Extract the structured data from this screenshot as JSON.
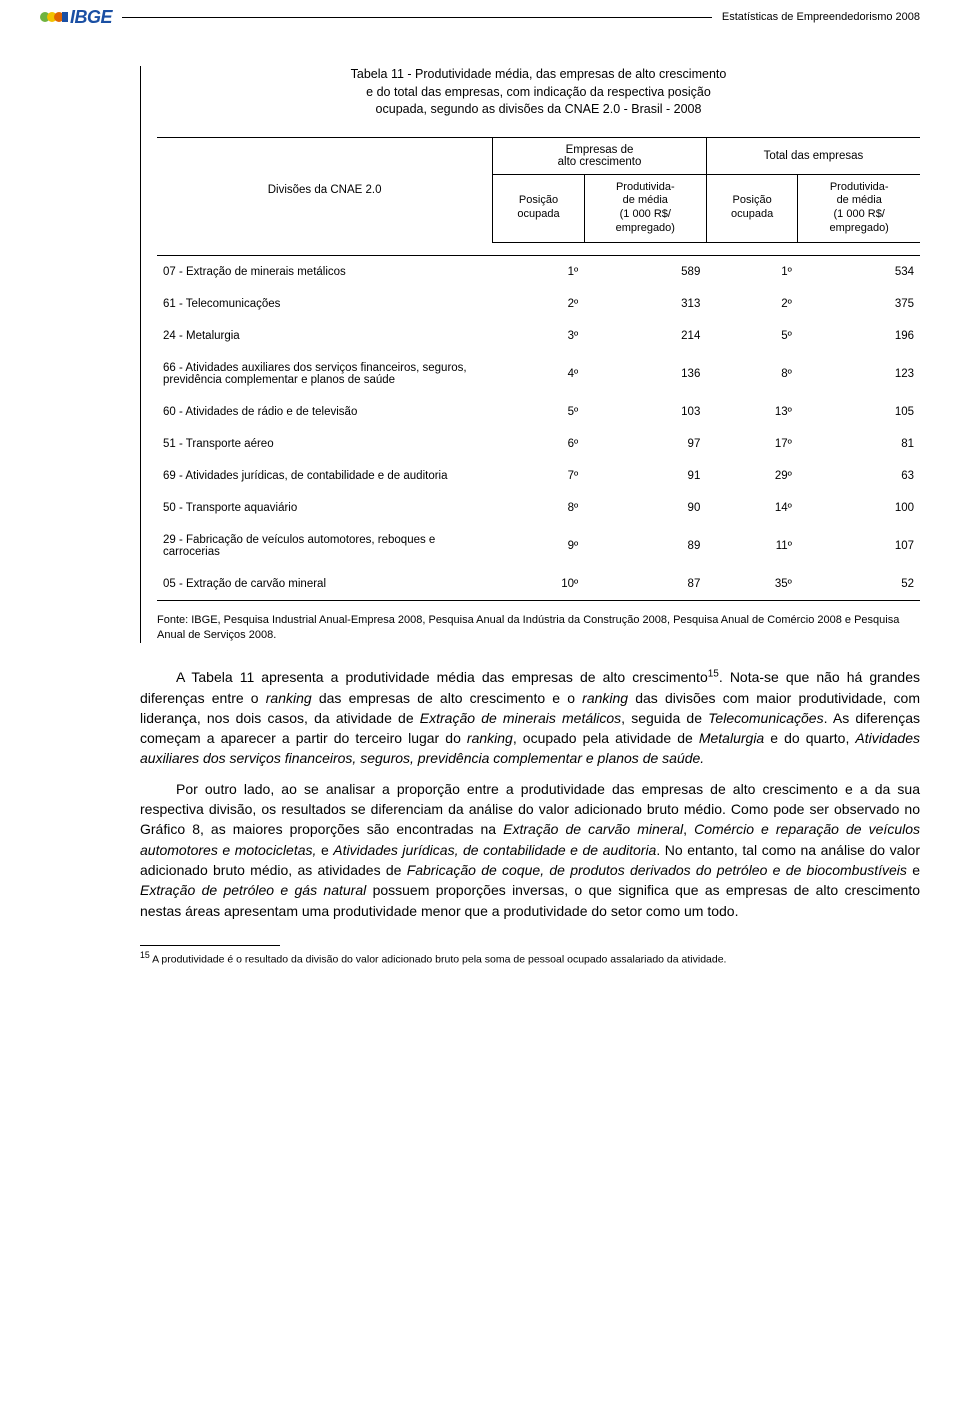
{
  "header": {
    "logo_text": "IBGE",
    "logo_colors": {
      "left": "#6fb33f",
      "mid1": "#f2c200",
      "mid2": "#e06400",
      "right": "#1a4fa3"
    },
    "right_text": "Estatísticas de Empreendedorismo 2008"
  },
  "table": {
    "caption_line1": "Tabela 11 - Produtividade média, das empresas de alto crescimento",
    "caption_line2": "e do total das empresas, com indicação da respectiva posição",
    "caption_line3": "ocupada, segundo as divisões da CNAE 2.0 - Brasil - 2008",
    "group_headers": {
      "left": "Empresas de\nalto crescimento",
      "right": "Total das empresas"
    },
    "row_header_label": "Divisões da CNAE 2.0",
    "col_headers": {
      "pos": "Posição\nocupada",
      "prod": "Produtivida-\nde média\n(1 000 R$/\nempregado)"
    },
    "rows": [
      {
        "label": "07 - Extração de minerais metálicos",
        "p1": "1º",
        "v1": "589",
        "p2": "1º",
        "v2": "534"
      },
      {
        "label": "61 - Telecomunicações",
        "p1": "2º",
        "v1": "313",
        "p2": "2º",
        "v2": "375"
      },
      {
        "label": "24 - Metalurgia",
        "p1": "3º",
        "v1": "214",
        "p2": "5º",
        "v2": "196"
      },
      {
        "label": "66 - Atividades auxiliares dos serviços financeiros, seguros, previdência complementar e planos de saúde",
        "p1": "4º",
        "v1": "136",
        "p2": "8º",
        "v2": "123"
      },
      {
        "label": "60 - Atividades de rádio e de televisão",
        "p1": "5º",
        "v1": "103",
        "p2": "13º",
        "v2": "105"
      },
      {
        "label": "51 - Transporte aéreo",
        "p1": "6º",
        "v1": "97",
        "p2": "17º",
        "v2": "81"
      },
      {
        "label": "69 - Atividades jurídicas, de contabilidade e de auditoria",
        "p1": "7º",
        "v1": "91",
        "p2": "29º",
        "v2": "63"
      },
      {
        "label": "50 - Transporte aquaviário",
        "p1": "8º",
        "v1": "90",
        "p2": "14º",
        "v2": "100"
      },
      {
        "label": "29 - Fabricação de veículos automotores, reboques e carrocerias",
        "p1": "9º",
        "v1": "89",
        "p2": "11º",
        "v2": "107"
      },
      {
        "label": "05 - Extração de carvão mineral",
        "p1": "10º",
        "v1": "87",
        "p2": "35º",
        "v2": "52"
      }
    ],
    "source": "Fonte: IBGE, Pesquisa Industrial Anual-Empresa 2008, Pesquisa Anual da Indústria da Construção 2008, Pesquisa Anual de Comércio 2008 e Pesquisa Anual de Serviços 2008."
  },
  "body": {
    "p1_a": "A Tabela 11 apresenta a produtividade média das empresas de alto crescimento",
    "p1_sup": "15",
    "p1_b": ". Nota-se que não há grandes diferenças entre o ",
    "p1_c": "ranking",
    "p1_d": " das empresas de alto crescimento e o ",
    "p1_e": "ranking",
    "p1_f": " das divisões com maior produtividade, com liderança, nos dois casos, da atividade de ",
    "p1_g": "Extração de minerais metálicos",
    "p1_h": ", seguida de ",
    "p1_i": "Telecomunicações",
    "p1_j": ". As diferenças começam a aparecer a partir do terceiro lugar do ",
    "p1_k": "ranking",
    "p1_l": ", ocupado pela atividade de ",
    "p1_m": "Metalurgia",
    "p1_n": " e do quarto, ",
    "p1_o": "Atividades auxiliares dos serviços financeiros, seguros, previdência complementar e planos de saúde.",
    "p2_a": "Por outro lado, ao se analisar a proporção entre a produtividade das empresas de alto crescimento e a da sua respectiva divisão, os resultados se diferenciam da análise do valor adicionado bruto médio. Como pode ser observado no Gráfico 8, as maiores proporções são encontradas na ",
    "p2_b": "Extração de carvão mineral",
    "p2_c": ", ",
    "p2_d": "Comércio e reparação de veículos automotores e motocicletas,",
    "p2_e": " e ",
    "p2_f": "Atividades jurídicas, de contabilidade e de auditoria",
    "p2_g": ". No entanto, tal como na análise do valor adicionado bruto médio, as atividades de ",
    "p2_h": "Fabricação de coque, de produtos derivados do petróleo e de biocombustíveis",
    "p2_i": " e ",
    "p2_j": "Extração de petróleo e gás natural",
    "p2_k": " possuem proporções inversas, o que significa que as empresas de alto crescimento nestas áreas apresentam uma produtividade menor que a produtividade do setor como um todo."
  },
  "footnote": {
    "marker": "15",
    "text": " A produtividade é o resultado da divisão do valor adicionado bruto pela soma de pessoal ocupado assalariado da atividade."
  }
}
